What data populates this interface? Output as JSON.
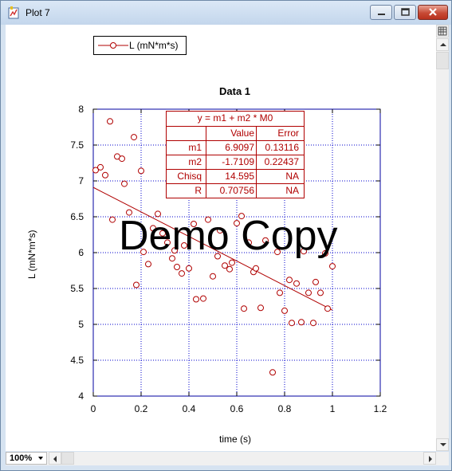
{
  "window": {
    "title": "Plot 7",
    "zoom": "100%"
  },
  "legend": {
    "label": "L (mN*m*s)"
  },
  "fit": {
    "equation": "y = m1 + m2 * M0",
    "headers": [
      "",
      "Value",
      "Error"
    ],
    "rows": [
      {
        "name": "m1",
        "value": "6.9097",
        "error": "0.13116"
      },
      {
        "name": "m2",
        "value": "-1.7109",
        "error": "0.22437"
      },
      {
        "name": "Chisq",
        "value": "14.595",
        "error": "NA"
      },
      {
        "name": "R",
        "value": "0.70756",
        "error": "NA"
      }
    ]
  },
  "watermark": "Demo Copy",
  "colors": {
    "series": "#b00000",
    "grid": "#0000cc"
  },
  "chart_data": {
    "type": "scatter",
    "title": "Data 1",
    "xlabel": "time (s)",
    "ylabel": "L (mN*m*s)",
    "xlim": [
      0,
      1.2
    ],
    "ylim": [
      4,
      8
    ],
    "xticks": [
      0,
      0.2,
      0.4,
      0.6,
      0.8,
      1,
      1.2
    ],
    "yticks": [
      4,
      4.5,
      5,
      5.5,
      6,
      6.5,
      7,
      7.5,
      8
    ],
    "xtick_labels": [
      "0",
      "0.2",
      "0.4",
      "0.6",
      "0.8",
      "1",
      "1.2"
    ],
    "ytick_labels": [
      "4",
      "4.5",
      "5",
      "5.5",
      "6",
      "6.5",
      "7",
      "7.5",
      "8"
    ],
    "grid": true,
    "legend": "top-left",
    "series": [
      {
        "name": "L (mN*m*s)",
        "marker": "circle",
        "points": [
          [
            0.01,
            7.15
          ],
          [
            0.03,
            7.19
          ],
          [
            0.05,
            7.08
          ],
          [
            0.07,
            7.83
          ],
          [
            0.08,
            6.46
          ],
          [
            0.1,
            7.34
          ],
          [
            0.12,
            7.31
          ],
          [
            0.13,
            6.96
          ],
          [
            0.15,
            6.56
          ],
          [
            0.17,
            7.61
          ],
          [
            0.18,
            5.55
          ],
          [
            0.2,
            7.14
          ],
          [
            0.21,
            6.01
          ],
          [
            0.23,
            5.84
          ],
          [
            0.25,
            6.34
          ],
          [
            0.27,
            6.54
          ],
          [
            0.29,
            6.27
          ],
          [
            0.31,
            6.14
          ],
          [
            0.33,
            5.92
          ],
          [
            0.34,
            6.03
          ],
          [
            0.35,
            5.8
          ],
          [
            0.37,
            5.71
          ],
          [
            0.38,
            6.1
          ],
          [
            0.4,
            5.78
          ],
          [
            0.42,
            6.4
          ],
          [
            0.43,
            5.35
          ],
          [
            0.46,
            5.36
          ],
          [
            0.48,
            6.46
          ],
          [
            0.5,
            5.67
          ],
          [
            0.52,
            5.95
          ],
          [
            0.53,
            6.31
          ],
          [
            0.55,
            5.82
          ],
          [
            0.57,
            5.77
          ],
          [
            0.58,
            5.86
          ],
          [
            0.6,
            6.41
          ],
          [
            0.62,
            6.51
          ],
          [
            0.63,
            5.22
          ],
          [
            0.65,
            6.14
          ],
          [
            0.67,
            5.73
          ],
          [
            0.68,
            5.78
          ],
          [
            0.7,
            5.23
          ],
          [
            0.72,
            6.17
          ],
          [
            0.75,
            4.33
          ],
          [
            0.77,
            6.01
          ],
          [
            0.78,
            5.44
          ],
          [
            0.8,
            5.19
          ],
          [
            0.82,
            5.62
          ],
          [
            0.83,
            5.02
          ],
          [
            0.85,
            5.57
          ],
          [
            0.87,
            5.03
          ],
          [
            0.88,
            6.02
          ],
          [
            0.9,
            5.44
          ],
          [
            0.92,
            5.02
          ],
          [
            0.93,
            5.59
          ],
          [
            0.95,
            5.44
          ],
          [
            0.97,
            5.99
          ],
          [
            0.98,
            5.22
          ],
          [
            1.0,
            5.81
          ]
        ]
      }
    ],
    "fit_line": {
      "x": [
        0,
        1
      ],
      "y": [
        6.9097,
        5.1988
      ]
    }
  }
}
